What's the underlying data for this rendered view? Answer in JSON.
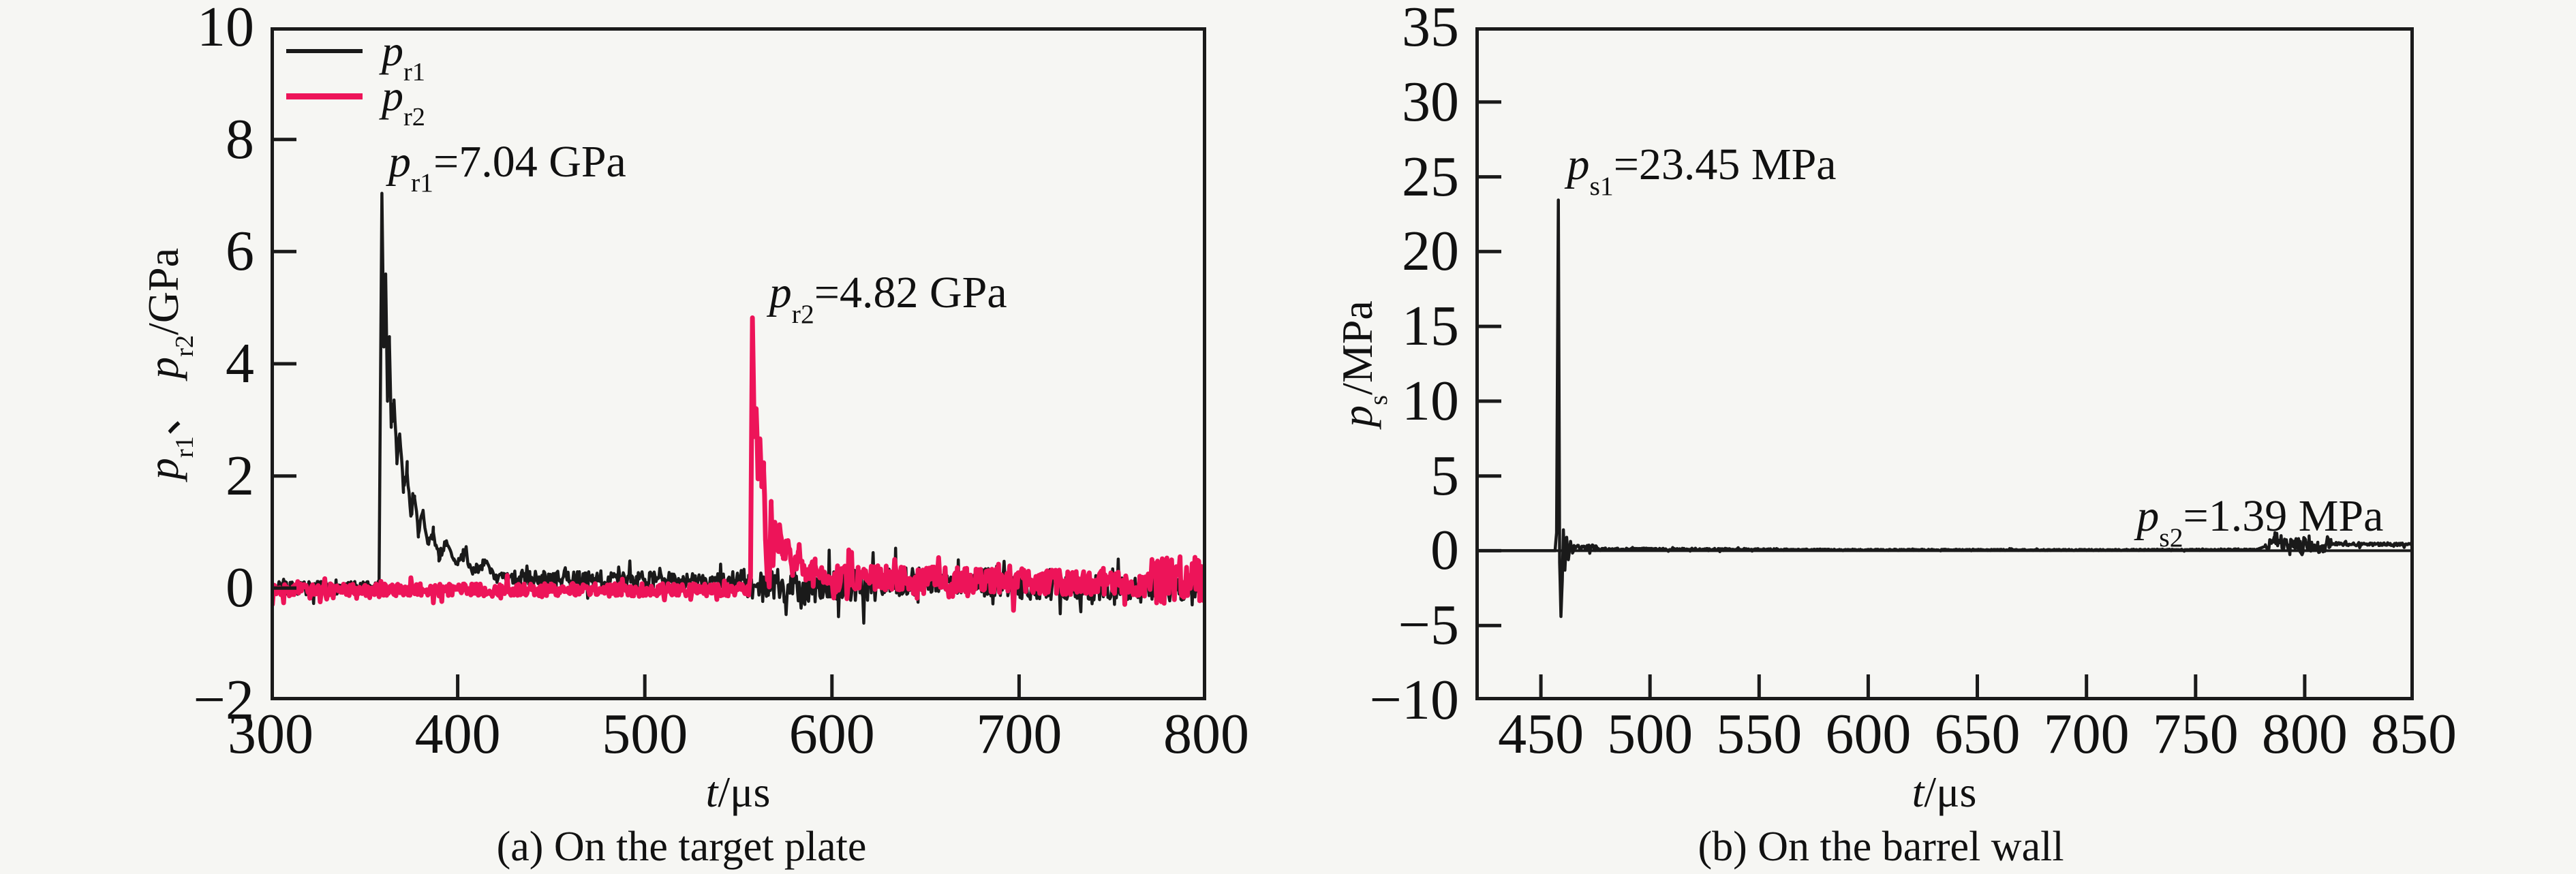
{
  "figure": {
    "background": "#f6f6f3",
    "foreground": "#1a1a1a",
    "accent_pink": "#ed1459"
  },
  "chart_data": [
    {
      "id": "a",
      "type": "line",
      "caption": "(a) On the target plate",
      "xlabel": {
        "var": "t",
        "unit": "/μs"
      },
      "ylabel": {
        "var1": "p",
        "sub1": "r1",
        "sep": "、 ",
        "var2": "p",
        "sub2": "r2",
        "unit": "/GPa"
      },
      "xlim": [
        300,
        800
      ],
      "ylim": [
        -2,
        10
      ],
      "x_ticks": [
        300,
        400,
        500,
        600,
        700,
        800
      ],
      "y_ticks": [
        -2,
        0,
        2,
        4,
        6,
        8,
        10
      ],
      "grid": false,
      "zero_line": false,
      "legend": {
        "position": "top-left",
        "items": [
          {
            "var": "p",
            "sub": "r1",
            "color": "#1a1a1a"
          },
          {
            "var": "p",
            "sub": "r2",
            "color": "#ed1459"
          }
        ]
      },
      "annotations": [
        {
          "var": "p",
          "sub": "r1",
          "rest": "=7.04 GPa",
          "t": 363,
          "p": 7.6
        },
        {
          "var": "p",
          "sub": "r2",
          "rest": "=4.82 GPa",
          "t": 566.5,
          "p": 5.26
        }
      ],
      "series": [
        {
          "name": "pr1",
          "color": "#1a1a1a",
          "width": 4.5,
          "seed": 7,
          "step": 0.5,
          "keypoints": [
            [
              300,
              0
            ],
            [
              356,
              0
            ],
            [
              358,
              0.15
            ],
            [
              359.5,
              7.04
            ],
            [
              360.5,
              4.3
            ],
            [
              361.5,
              5.6
            ],
            [
              362.5,
              3.4
            ],
            [
              363.5,
              4.4
            ],
            [
              364.5,
              2.9
            ],
            [
              366,
              3.4
            ],
            [
              367.5,
              2.3
            ],
            [
              369,
              2.75
            ],
            [
              371,
              1.8
            ],
            [
              373,
              2.1
            ],
            [
              375,
              1.35
            ],
            [
              377,
              1.6
            ],
            [
              379,
              1.0
            ],
            [
              381.5,
              1.35
            ],
            [
              384,
              0.75
            ],
            [
              387,
              1.0
            ],
            [
              390,
              0.55
            ],
            [
              394,
              0.8
            ],
            [
              398,
              0.45
            ],
            [
              403,
              0.6
            ],
            [
              408,
              0.3
            ],
            [
              414,
              0.45
            ],
            [
              420,
              0.2
            ],
            [
              430,
              0.15
            ],
            [
              800,
              0.0
            ]
          ],
          "noise": [
            {
              "from": 300,
              "to": 356,
              "amp": 0.12,
              "bias": 0
            },
            {
              "from": 362,
              "to": 430,
              "amp": 0.1,
              "bias": 0
            },
            {
              "from": 430,
              "to": 560,
              "amp": 0.15,
              "bias": 0.02
            },
            {
              "from": 560,
              "to": 620,
              "amp": 0.3,
              "bias": -0.05
            },
            {
              "from": 620,
              "to": 700,
              "amp": 0.25,
              "bias": 0.05
            },
            {
              "from": 700,
              "to": 800,
              "amp": 0.22,
              "bias": -0.02
            }
          ]
        },
        {
          "name": "pr2",
          "color": "#ed1459",
          "width": 7,
          "seed": 13,
          "step": 0.5,
          "keypoints": [
            [
              300,
              -0.03
            ],
            [
              555.5,
              -0.03
            ],
            [
              556.5,
              0.2
            ],
            [
              557.5,
              4.82
            ],
            [
              558.5,
              2.7
            ],
            [
              559.5,
              3.2
            ],
            [
              560.5,
              2.25
            ],
            [
              561.5,
              2.7
            ],
            [
              562.5,
              1.8
            ],
            [
              563.5,
              2.1
            ],
            [
              564.5,
              1.0
            ],
            [
              565.5,
              0.25
            ],
            [
              566.5,
              -0.1
            ],
            [
              567.5,
              1.55
            ],
            [
              568.5,
              0.35
            ],
            [
              569.5,
              1.25
            ],
            [
              570.5,
              0.7
            ],
            [
              572,
              1.05
            ],
            [
              574,
              0.55
            ],
            [
              576.5,
              0.8
            ],
            [
              579,
              0.35
            ],
            [
              582,
              0.55
            ],
            [
              586,
              0.25
            ],
            [
              591,
              0.4
            ],
            [
              596,
              0.15
            ],
            [
              605,
              0.2
            ],
            [
              800,
              0.05
            ]
          ],
          "noise": [
            {
              "from": 300,
              "to": 555.5,
              "amp": 0.11,
              "bias": 0
            },
            {
              "from": 560,
              "to": 600,
              "amp": 0.15,
              "bias": 0
            },
            {
              "from": 600,
              "to": 770,
              "amp": 0.22,
              "bias": 0
            },
            {
              "from": 770,
              "to": 800,
              "amp": 0.42,
              "bias": 0.08
            }
          ]
        }
      ]
    },
    {
      "id": "b",
      "type": "line",
      "caption": "(b) On the barrel wall",
      "xlabel": {
        "var": "t",
        "unit": "/μs"
      },
      "ylabel": {
        "var1": "p",
        "sub1": "s",
        "sep": "",
        "var2": "",
        "sub2": "",
        "unit": "/MPa"
      },
      "xlim": [
        420,
        850
      ],
      "ylim": [
        -10,
        35
      ],
      "x_ticks": [
        450,
        500,
        550,
        600,
        650,
        700,
        750,
        800,
        850
      ],
      "y_ticks": [
        -10,
        -5,
        0,
        5,
        10,
        15,
        20,
        25,
        30,
        35
      ],
      "grid": false,
      "zero_line": true,
      "legend": null,
      "annotations": [
        {
          "var": "p",
          "sub": "s1",
          "rest": "=23.45 MPa",
          "t": 462,
          "p": 25.8
        },
        {
          "var": "p",
          "sub": "s2",
          "rest": "=1.39 MPa",
          "t": 723,
          "p": 2.3
        }
      ],
      "series": [
        {
          "name": "ps",
          "color": "#1a1a1a",
          "width": 4.5,
          "seed": 21,
          "step": 0.4,
          "keypoints": [
            [
              420,
              0
            ],
            [
              456.5,
              0
            ],
            [
              457.2,
              1.2
            ],
            [
              458,
              23.45
            ],
            [
              458.6,
              -0.8
            ],
            [
              459.2,
              -4.4
            ],
            [
              459.8,
              -2.0
            ],
            [
              460.3,
              1.4
            ],
            [
              461,
              -1.3
            ],
            [
              461.8,
              0.9
            ],
            [
              462.6,
              -0.6
            ],
            [
              463.5,
              0.55
            ],
            [
              464.5,
              -0.1
            ],
            [
              466,
              0.35
            ],
            [
              468,
              0.12
            ],
            [
              472,
              0.25
            ],
            [
              478,
              0.12
            ],
            [
              520,
              0.1
            ],
            [
              600,
              0.06
            ],
            [
              700,
              0.05
            ],
            [
              778,
              0.08
            ],
            [
              782,
              0.3
            ],
            [
              786,
              0.6
            ],
            [
              790,
              0.35
            ],
            [
              794,
              0.6
            ],
            [
              798,
              0.3
            ],
            [
              802,
              0.55
            ],
            [
              806,
              0.35
            ],
            [
              812,
              0.5
            ],
            [
              820,
              0.42
            ],
            [
              850,
              0.45
            ]
          ],
          "noise": [
            {
              "from": 463,
              "to": 478,
              "amp": 0.18,
              "bias": 0
            },
            {
              "from": 478,
              "to": 560,
              "amp": 0.07,
              "bias": 0
            },
            {
              "from": 560,
              "to": 778,
              "amp": 0.04,
              "bias": 0
            },
            {
              "from": 782,
              "to": 812,
              "amp": 0.5,
              "bias": 0
            },
            {
              "from": 812,
              "to": 850,
              "amp": 0.1,
              "bias": 0
            }
          ]
        }
      ]
    }
  ]
}
